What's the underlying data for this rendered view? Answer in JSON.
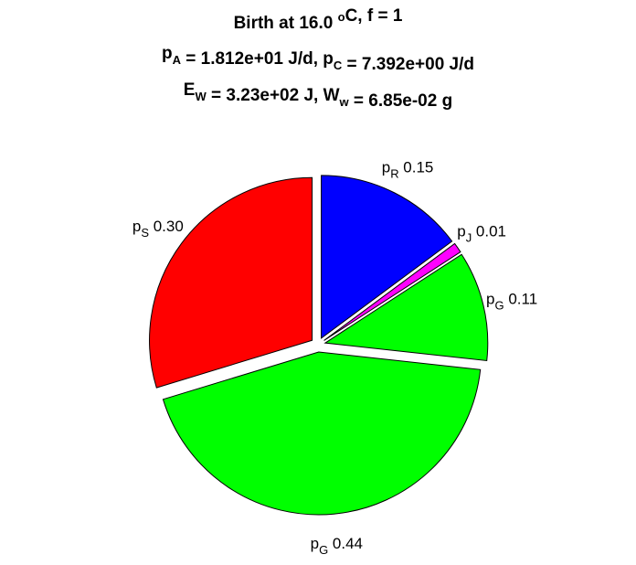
{
  "chart_data": {
    "type": "pie",
    "title_lines": [
      [
        {
          "t": "Birth at 16.0 "
        },
        {
          "t": "o",
          "s": "sup"
        },
        {
          "t": "C, f = 1"
        }
      ],
      [
        {
          "t": "p"
        },
        {
          "t": "A",
          "s": "sub"
        },
        {
          "t": " = 1.812e+01 J/d, p"
        },
        {
          "t": "C",
          "s": "sub"
        },
        {
          "t": " = 7.392e+00 J/d"
        }
      ],
      [
        {
          "t": "E"
        },
        {
          "t": "W",
          "s": "sub"
        },
        {
          "t": " = 3.23e+02 J, W"
        },
        {
          "t": "w",
          "s": "sub"
        },
        {
          "t": " = 6.85e-02 g"
        }
      ]
    ],
    "slices": [
      {
        "base": "p",
        "sub": "R",
        "value_label": "0.15",
        "value": 0.15,
        "color": "#0000ff"
      },
      {
        "base": "p",
        "sub": "J",
        "value_label": "0.01",
        "value": 0.01,
        "color": "#ff00ff"
      },
      {
        "base": "p",
        "sub": "G",
        "value_label": "0.11",
        "value": 0.11,
        "color": "#00ff00"
      },
      {
        "base": "p",
        "sub": "G",
        "value_label": "0.44",
        "value": 0.44,
        "color": "#00ff00"
      },
      {
        "base": "p",
        "sub": "S",
        "value_label": "0.30",
        "value": 0.3,
        "color": "#ff0000"
      }
    ],
    "start": "12 o'clock",
    "direction": "clockwise",
    "exploded": true
  }
}
